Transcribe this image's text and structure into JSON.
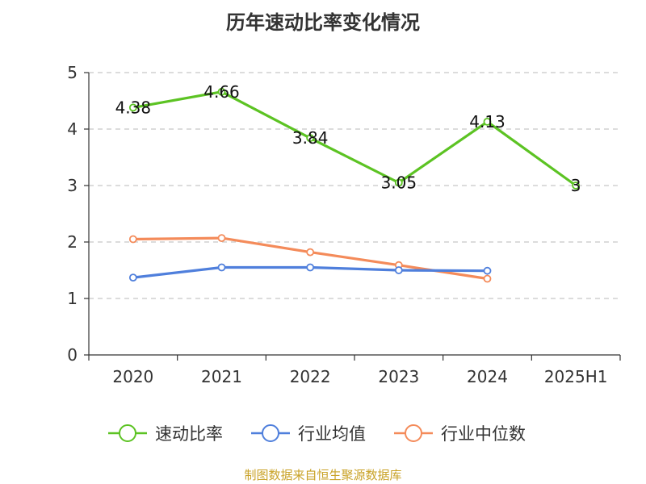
{
  "title": "历年速动比率变化情况",
  "source": "制图数据来自恒生聚源数据库",
  "chart_data": {
    "type": "line",
    "title": "历年速动比率变化情况",
    "xlabel": "",
    "ylabel": "",
    "categories": [
      "2020",
      "2021",
      "2022",
      "2023",
      "2024",
      "2025H1"
    ],
    "ylim": [
      0,
      5
    ],
    "yticks": [
      0,
      1,
      2,
      3,
      4,
      5
    ],
    "grid": true,
    "legend_position": "bottom",
    "series": [
      {
        "name": "速动比率",
        "color": "#5cc323",
        "values": [
          4.38,
          4.66,
          3.84,
          3.05,
          4.13,
          3
        ],
        "labels": [
          "4.38",
          "4.66",
          "3.84",
          "3.05",
          "4.13",
          "3"
        ]
      },
      {
        "name": "行业均值",
        "color": "#4f7fdc",
        "values": [
          1.37,
          1.55,
          1.55,
          1.5,
          1.49,
          null
        ]
      },
      {
        "name": "行业中位数",
        "color": "#f48b5a",
        "values": [
          2.05,
          2.07,
          1.82,
          1.59,
          1.35,
          null
        ]
      }
    ]
  }
}
